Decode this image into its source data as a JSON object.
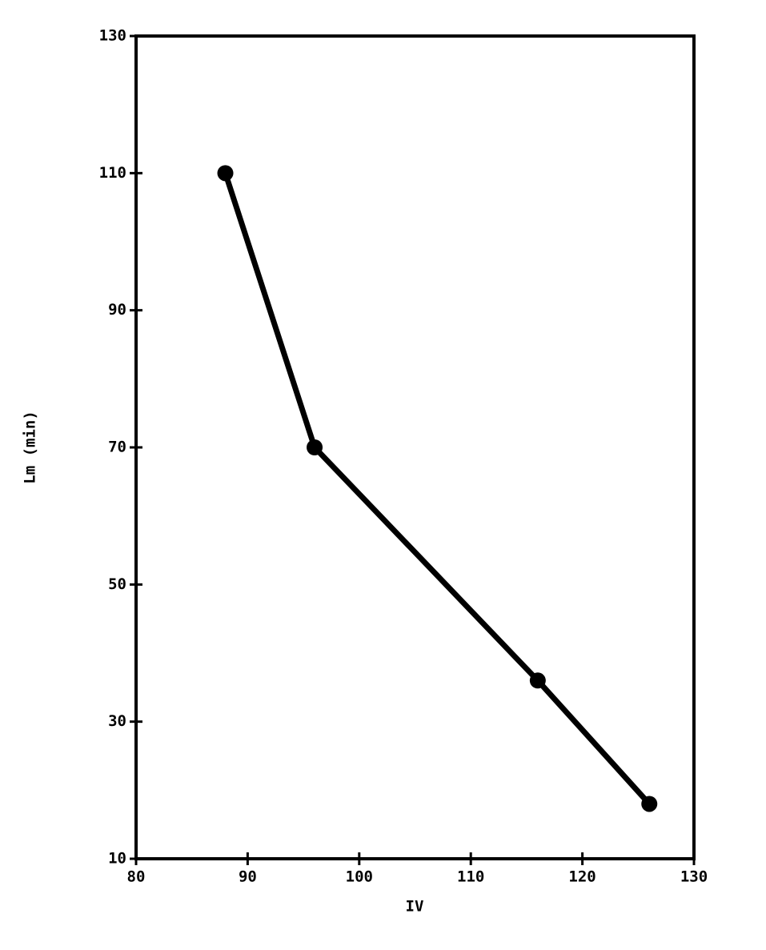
{
  "chart_data": {
    "type": "line",
    "x_label": "IV",
    "y_label": "Lm (min)",
    "x": [
      88,
      96,
      116,
      126
    ],
    "values": [
      110,
      70,
      36,
      18
    ],
    "color": "#000000",
    "xlim": [
      80,
      130
    ],
    "xticks": [
      80,
      90,
      100,
      110,
      120,
      130
    ],
    "ylim": [
      10,
      130
    ],
    "yticks": [
      10,
      30,
      50,
      70,
      90,
      110,
      130
    ],
    "grid": false,
    "markers": true
  }
}
